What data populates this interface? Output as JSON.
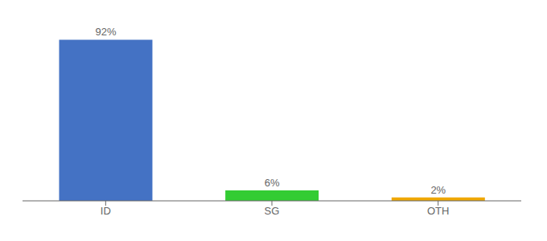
{
  "chart_data": {
    "type": "bar",
    "categories": [
      "ID",
      "SG",
      "OTH"
    ],
    "values": [
      92,
      6,
      2
    ],
    "value_labels": [
      "92%",
      "6%",
      "2%"
    ],
    "colors": [
      "#4472c4",
      "#33cc33",
      "#f0a800"
    ],
    "ylim": [
      0,
      100
    ],
    "grid": false,
    "data_labels": true,
    "tick_labels": "x"
  }
}
